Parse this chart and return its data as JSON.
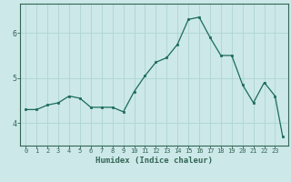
{
  "x": [
    0,
    1,
    2,
    3,
    4,
    5,
    6,
    7,
    8,
    9,
    10,
    11,
    12,
    13,
    14,
    15,
    16,
    17,
    18,
    19,
    20,
    21,
    22,
    23,
    23.7
  ],
  "y": [
    4.3,
    4.3,
    4.4,
    4.45,
    4.6,
    4.55,
    4.35,
    4.35,
    4.35,
    4.25,
    4.7,
    5.05,
    5.35,
    5.45,
    5.75,
    6.3,
    6.35,
    5.9,
    5.5,
    5.5,
    4.85,
    4.45,
    4.9,
    4.6,
    3.7
  ],
  "line_color": "#1a6b5a",
  "marker": "s",
  "marker_size": 2.0,
  "bg_color": "#cce8e8",
  "grid_color": "#aed4d4",
  "xlabel": "Humidex (Indice chaleur)",
  "ylim": [
    3.5,
    6.65
  ],
  "xlim": [
    -0.5,
    24.2
  ],
  "yticks": [
    4,
    5,
    6
  ],
  "xticks": [
    0,
    1,
    2,
    3,
    4,
    5,
    6,
    7,
    8,
    9,
    10,
    11,
    12,
    13,
    14,
    15,
    16,
    17,
    18,
    19,
    20,
    21,
    22,
    23
  ],
  "axis_color": "#336655",
  "tick_color": "#336655",
  "label_fontsize": 6.5,
  "tick_fontsize_x": 5.0,
  "tick_fontsize_y": 6.0
}
